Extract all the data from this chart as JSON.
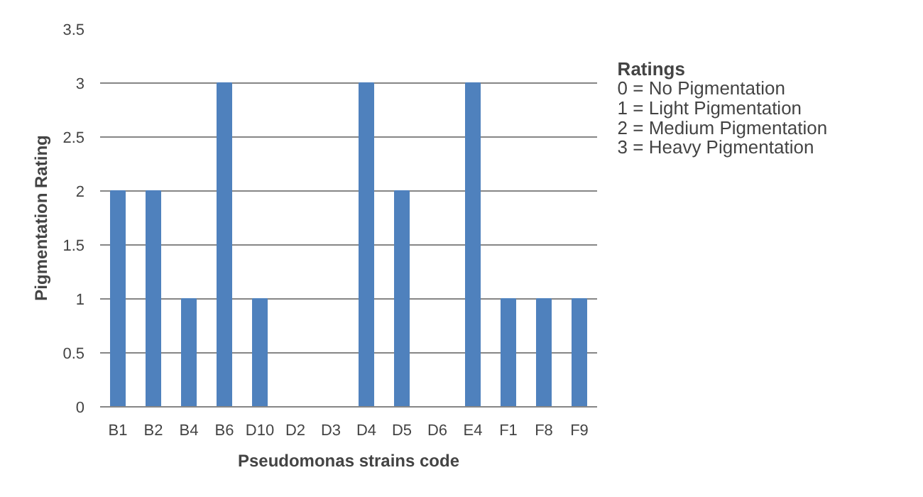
{
  "chart_data": {
    "type": "bar",
    "xlabel": "Pseudomonas strains code",
    "ylabel": "Pigmentation Rating",
    "categories": [
      "B1",
      "B2",
      "B4",
      "B6",
      "D10",
      "D2",
      "D3",
      "D4",
      "D5",
      "D6",
      "E4",
      "F1",
      "F8",
      "F9"
    ],
    "values": [
      2,
      2,
      1,
      3,
      1,
      0,
      0,
      3,
      2,
      0,
      3,
      1,
      1,
      1
    ],
    "color": "#4f81bd",
    "ylim": [
      0,
      3.5
    ],
    "yticks": [
      0,
      0.5,
      1,
      1.5,
      2,
      2.5,
      3,
      3.5
    ],
    "grid": "y",
    "annotations": [
      "Ratings",
      "0 = No Pigmentation",
      "1 = Light Pigmentation",
      "2 = Medium Pigmentation",
      "3 = Heavy Pigmentation"
    ]
  }
}
